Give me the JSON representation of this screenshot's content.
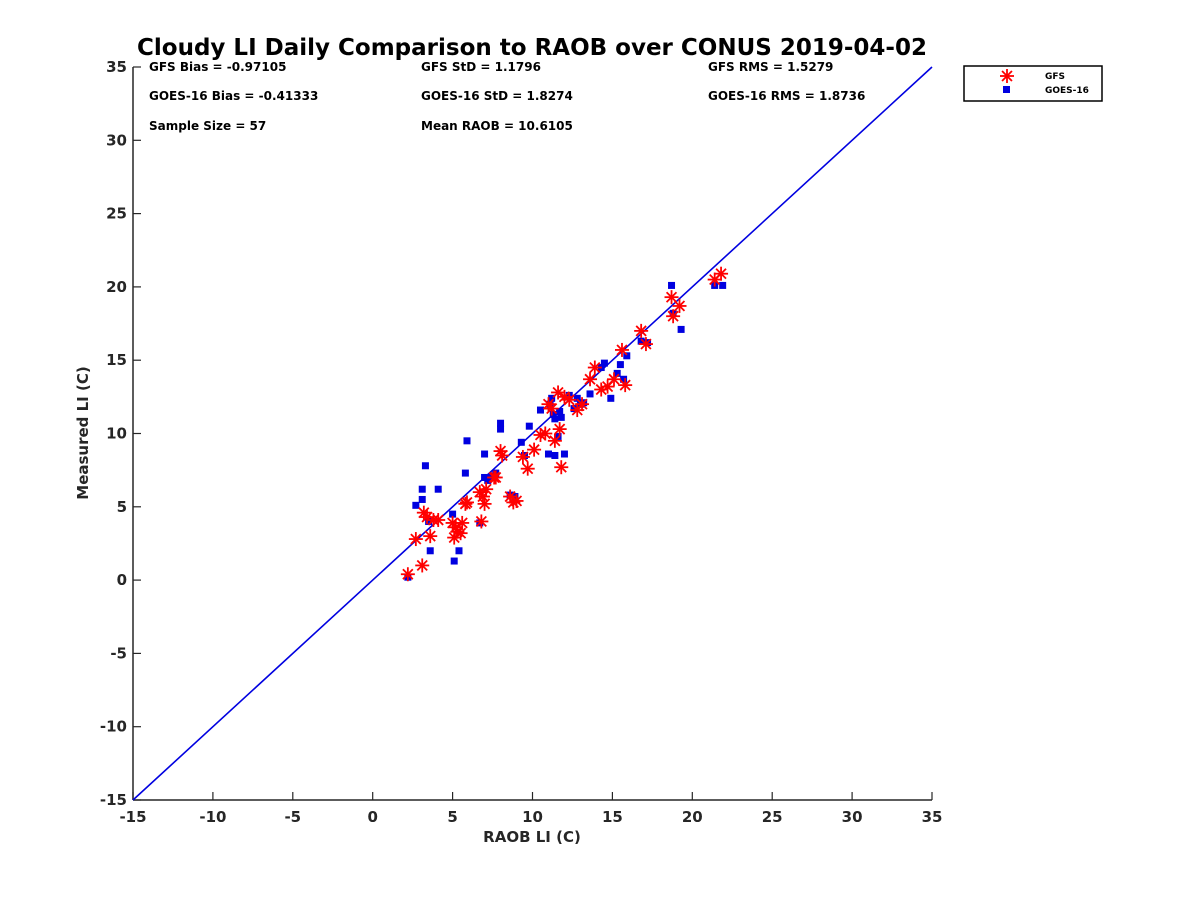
{
  "chart_data": {
    "type": "scatter",
    "title": "Cloudy LI Daily Comparison to RAOB over CONUS 2019-04-02",
    "xlabel": "RAOB LI (C)",
    "ylabel": "Measured LI (C)",
    "xlim": [
      -15,
      35
    ],
    "ylim": [
      -15,
      35
    ],
    "xticks": [
      "-15",
      "-10",
      "-5",
      "0",
      "5",
      "10",
      "15",
      "20",
      "25",
      "30",
      "35"
    ],
    "yticks": [
      "-15",
      "-10",
      "-5",
      "0",
      "5",
      "10",
      "15",
      "20",
      "25",
      "30",
      "35"
    ],
    "grid": false,
    "legend_position": "outside-top-right",
    "reference_line": {
      "x": [
        -15,
        35
      ],
      "y": [
        -15,
        35
      ],
      "color": "#0000e0"
    },
    "stats": [
      [
        "GFS Bias = -0.97105",
        "GFS StD = 1.1796",
        "GFS RMS = 1.5279"
      ],
      [
        "GOES-16 Bias = -0.41333",
        "GOES-16 StD = 1.8274",
        "GOES-16 RMS = 1.8736"
      ],
      [
        "Sample Size = 57",
        "Mean RAOB = 10.6105",
        ""
      ]
    ],
    "series": [
      {
        "name": "GFS",
        "marker": "asterisk",
        "color": "#ff0000",
        "x": [
          2.2,
          2.7,
          3.1,
          3.2,
          3.4,
          3.6,
          3.8,
          4.1,
          5.0,
          5.1,
          5.2,
          5.3,
          5.5,
          5.6,
          5.8,
          5.9,
          6.7,
          6.8,
          6.9,
          7.0,
          7.1,
          7.6,
          7.7,
          8.0,
          8.1,
          8.6,
          8.8,
          9.0,
          9.4,
          9.7,
          10.1,
          10.5,
          10.8,
          11.0,
          11.2,
          11.4,
          11.6,
          11.7,
          11.8,
          12.0,
          12.3,
          12.8,
          13.1,
          13.6,
          13.9,
          14.3,
          14.7,
          15.1,
          15.6,
          15.8,
          16.8,
          17.1,
          18.7,
          18.8,
          19.2,
          21.4,
          21.8
        ],
        "y": [
          0.4,
          2.8,
          1.0,
          4.6,
          4.3,
          3.0,
          4.1,
          4.1,
          3.9,
          2.9,
          3.6,
          3.3,
          3.2,
          3.9,
          5.2,
          5.3,
          6.0,
          4.0,
          5.7,
          5.2,
          6.2,
          7.0,
          7.0,
          8.8,
          8.5,
          5.7,
          5.3,
          5.4,
          8.4,
          7.6,
          8.9,
          9.9,
          10.0,
          12.0,
          11.7,
          9.5,
          12.8,
          10.3,
          7.7,
          12.5,
          12.3,
          11.6,
          12.0,
          13.7,
          14.5,
          13.0,
          13.2,
          13.7,
          15.7,
          13.3,
          17.0,
          16.1,
          19.3,
          18.0,
          18.7,
          20.5,
          20.9
        ]
      },
      {
        "name": "GOES-16",
        "marker": "square",
        "color": "#0000e0",
        "x": [
          2.2,
          2.7,
          3.1,
          3.1,
          3.3,
          3.5,
          3.6,
          4.1,
          5.0,
          5.1,
          5.4,
          5.8,
          5.9,
          6.7,
          7.0,
          7.0,
          7.4,
          7.7,
          8.0,
          8.0,
          8.6,
          8.9,
          9.3,
          9.5,
          9.8,
          10.5,
          11.0,
          11.1,
          11.2,
          11.3,
          11.4,
          11.4,
          11.6,
          11.7,
          11.8,
          12.0,
          12.3,
          12.6,
          12.8,
          13.0,
          13.2,
          13.6,
          14.3,
          14.5,
          14.9,
          15.3,
          15.5,
          15.7,
          15.9,
          16.8,
          17.2,
          18.7,
          18.8,
          19.3,
          21.4,
          21.9,
          7.2
        ],
        "y": [
          0.2,
          5.1,
          6.2,
          5.5,
          7.8,
          4.0,
          2.0,
          6.2,
          4.5,
          1.3,
          2.0,
          7.3,
          9.5,
          3.9,
          8.6,
          7.0,
          7.0,
          7.3,
          10.3,
          10.7,
          5.8,
          5.7,
          9.4,
          8.5,
          10.5,
          11.6,
          8.6,
          12.0,
          12.4,
          11.3,
          11.0,
          8.5,
          9.8,
          11.5,
          11.1,
          8.6,
          12.6,
          11.7,
          12.4,
          12.0,
          12.1,
          12.7,
          14.5,
          14.8,
          12.4,
          14.1,
          14.7,
          13.7,
          15.3,
          16.3,
          16.2,
          20.1,
          18.2,
          17.1,
          20.1,
          20.1,
          6.8
        ]
      }
    ]
  }
}
